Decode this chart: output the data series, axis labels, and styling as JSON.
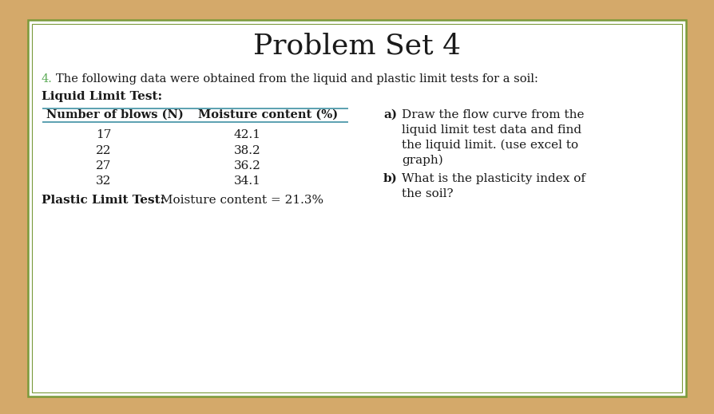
{
  "title": "Problem Set 4",
  "title_fontsize": 26,
  "background_outer": "#d4a96a",
  "background_inner": "#ffffff",
  "border_color": "#7a9a3a",
  "problem_number": "4.",
  "intro_text": "The following data were obtained from the liquid and plastic limit tests for a soil:",
  "section1_label": "Liquid Limit Test:",
  "col1_header": "Number of blows (N)",
  "col2_header": "Moisture content (%)",
  "table_data": [
    [
      17,
      "42.1"
    ],
    [
      22,
      "38.2"
    ],
    [
      27,
      "36.2"
    ],
    [
      32,
      "34.1"
    ]
  ],
  "plastic_limit_bold": "Plastic Limit Test:",
  "plastic_limit_text": " Moisture content = 21.3%",
  "part_a_label": "a)",
  "part_a_lines": [
    "Draw the flow curve from the",
    "liquid limit test data and find",
    "the liquid limit. (use excel to",
    "graph)"
  ],
  "part_b_label": "b)",
  "part_b_lines": [
    "What is the plasticity index of",
    "the soil?"
  ],
  "header_line_color": "#5aa0b0",
  "text_color": "#1a1a1a",
  "number_color": "#5aaa55",
  "font_family": "DejaVu Serif"
}
